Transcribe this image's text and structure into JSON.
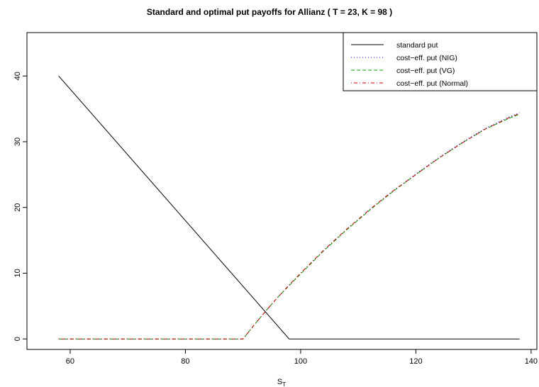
{
  "chart_data": {
    "type": "line",
    "title": "Standard and optimal put payoffs for Allianz ( T = 23, K = 98 )",
    "xlabel": "S",
    "xlabel_subscript": "T",
    "ylabel": "",
    "xlim": [
      52.5,
      141
    ],
    "ylim": [
      -1.6,
      46.6
    ],
    "xticks": [
      60,
      80,
      100,
      120,
      140
    ],
    "yticks": [
      0,
      10,
      20,
      30,
      40
    ],
    "grid": false,
    "legend_position": "top-right",
    "series": [
      {
        "name": "standard put",
        "color": "#000000",
        "dash": "solid",
        "x": [
          58,
          98,
          138
        ],
        "y": [
          40,
          0,
          0
        ]
      },
      {
        "name": "cost−eff. put (NIG)",
        "color": "#0000FF",
        "dash": "dotted",
        "x": [
          58,
          90,
          92,
          94,
          96,
          98,
          100,
          104,
          108,
          112,
          116,
          120,
          124,
          128,
          132,
          136,
          138
        ],
        "y": [
          0,
          0,
          2.2,
          4.3,
          6.3,
          8.2,
          10.0,
          13.5,
          16.7,
          19.7,
          22.5,
          25.1,
          27.6,
          29.9,
          32.0,
          33.7,
          34.4
        ]
      },
      {
        "name": "cost−eff. put (VG)",
        "color": "#00A000",
        "dash": "dashed",
        "x": [
          58,
          90,
          92,
          94,
          96,
          98,
          100,
          104,
          108,
          112,
          116,
          120,
          124,
          128,
          132,
          136,
          138
        ],
        "y": [
          0,
          0,
          2.2,
          4.3,
          6.3,
          8.1,
          9.9,
          13.4,
          16.6,
          19.6,
          22.4,
          25.0,
          27.5,
          29.8,
          31.9,
          33.5,
          34.2
        ]
      },
      {
        "name": "cost−eff. put (Normal)",
        "color": "#D00000",
        "dash": "dotdash",
        "x": [
          58,
          90,
          92,
          94,
          96,
          98,
          100,
          104,
          108,
          112,
          116,
          120,
          124,
          128,
          132,
          136,
          138
        ],
        "y": [
          0,
          0,
          2.2,
          4.3,
          6.3,
          8.2,
          10.0,
          13.5,
          16.7,
          19.7,
          22.5,
          25.0,
          27.5,
          29.8,
          31.9,
          33.6,
          34.3
        ]
      }
    ]
  }
}
